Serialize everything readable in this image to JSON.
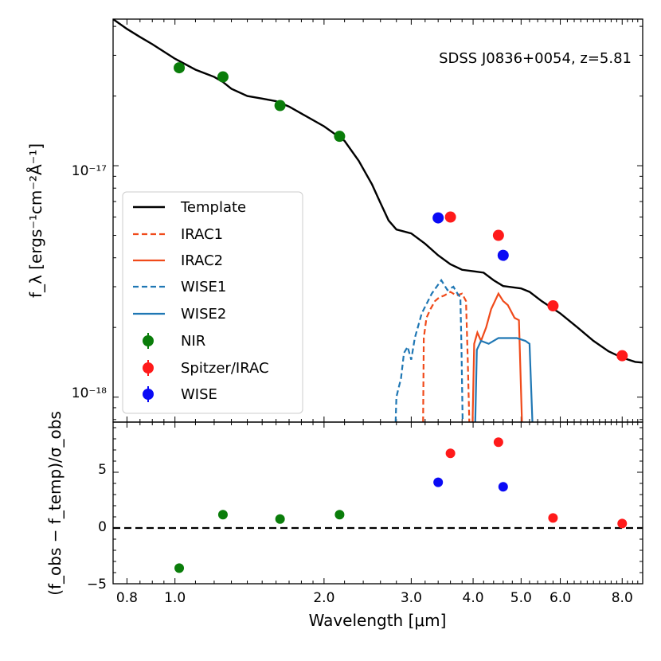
{
  "chart_data": {
    "type": "scatter",
    "annotation": "SDSS J0836+0054, z=5.81",
    "xlabel": "Wavelength [μm]",
    "xscale": "log",
    "xlim": [
      0.75,
      8.8
    ],
    "x_ticks": [
      {
        "value": 0.8,
        "label": "0.8"
      },
      {
        "value": 1.0,
        "label": "1.0"
      },
      {
        "value": 2.0,
        "label": "2.0"
      },
      {
        "value": 3.0,
        "label": "3.0"
      },
      {
        "value": 4.0,
        "label": "4.0"
      },
      {
        "value": 5.0,
        "label": "5.0"
      },
      {
        "value": 6.0,
        "label": "6.0"
      },
      {
        "value": 8.0,
        "label": "8.0"
      }
    ],
    "top_panel": {
      "ylabel": "f_λ [ergs⁻¹cm⁻²Å⁻¹]",
      "yscale": "log",
      "ylim": [
        7.8e-19,
        4.3e-17
      ],
      "y_ticks": [
        {
          "value": 1e-17,
          "label": "10⁻¹⁷"
        },
        {
          "value": 1e-18,
          "label": "10⁻¹⁸"
        }
      ],
      "template": {
        "name": "Template",
        "color": "#000000",
        "points": [
          [
            0.75,
            4.3e-17
          ],
          [
            0.8,
            3.9e-17
          ],
          [
            0.85,
            3.6e-17
          ],
          [
            0.9,
            3.35e-17
          ],
          [
            1.0,
            2.9e-17
          ],
          [
            1.1,
            2.6e-17
          ],
          [
            1.2,
            2.42e-17
          ],
          [
            1.25,
            2.3e-17
          ],
          [
            1.3,
            2.15e-17
          ],
          [
            1.4,
            2e-17
          ],
          [
            1.5,
            1.95e-17
          ],
          [
            1.6,
            1.9e-17
          ],
          [
            1.7,
            1.8e-17
          ],
          [
            1.8,
            1.68e-17
          ],
          [
            2.0,
            1.48e-17
          ],
          [
            2.2,
            1.28e-17
          ],
          [
            2.35,
            1.05e-17
          ],
          [
            2.5,
            8.3e-18
          ],
          [
            2.6,
            6.9e-18
          ],
          [
            2.7,
            5.8e-18
          ],
          [
            2.8,
            5.3e-18
          ],
          [
            3.0,
            5.1e-18
          ],
          [
            3.2,
            4.6e-18
          ],
          [
            3.4,
            4.1e-18
          ],
          [
            3.6,
            3.75e-18
          ],
          [
            3.8,
            3.55e-18
          ],
          [
            4.0,
            3.5e-18
          ],
          [
            4.2,
            3.45e-18
          ],
          [
            4.4,
            3.2e-18
          ],
          [
            4.6,
            3.02e-18
          ],
          [
            5.0,
            2.95e-18
          ],
          [
            5.2,
            2.85e-18
          ],
          [
            5.5,
            2.6e-18
          ],
          [
            6.0,
            2.3e-18
          ],
          [
            6.5,
            2e-18
          ],
          [
            7.0,
            1.75e-18
          ],
          [
            7.5,
            1.58e-18
          ],
          [
            8.0,
            1.48e-18
          ],
          [
            8.5,
            1.42e-18
          ],
          [
            8.8,
            1.41e-18
          ]
        ]
      },
      "filters": [
        {
          "name": "IRAC1",
          "color": "#f04a1a",
          "dash": true,
          "points": [
            [
              3.17,
              7.8e-19
            ],
            [
              3.18,
              1.8e-18
            ],
            [
              3.22,
              2.2e-18
            ],
            [
              3.28,
              2.4e-18
            ],
            [
              3.35,
              2.6e-18
            ],
            [
              3.42,
              2.7e-18
            ],
            [
              3.5,
              2.75e-18
            ],
            [
              3.6,
              2.85e-18
            ],
            [
              3.7,
              2.75e-18
            ],
            [
              3.8,
              2.8e-18
            ],
            [
              3.87,
              2.6e-18
            ],
            [
              3.9,
              1.5e-18
            ],
            [
              3.93,
              7.8e-19
            ]
          ]
        },
        {
          "name": "IRAC2",
          "color": "#f04a1a",
          "dash": false,
          "points": [
            [
              3.99,
              7.8e-19
            ],
            [
              4.02,
              1.7e-18
            ],
            [
              4.08,
              1.9e-18
            ],
            [
              4.15,
              1.75e-18
            ],
            [
              4.25,
              2e-18
            ],
            [
              4.35,
              2.4e-18
            ],
            [
              4.5,
              2.8e-18
            ],
            [
              4.6,
              2.6e-18
            ],
            [
              4.7,
              2.5e-18
            ],
            [
              4.85,
              2.2e-18
            ],
            [
              4.95,
              2.15e-18
            ],
            [
              5.02,
              7.8e-19
            ]
          ]
        },
        {
          "name": "WISE1",
          "color": "#1f77b4",
          "dash": true,
          "points": [
            [
              2.79,
              7.8e-19
            ],
            [
              2.8,
              1e-18
            ],
            [
              2.83,
              1.1e-18
            ],
            [
              2.86,
              1.2e-18
            ],
            [
              2.9,
              1.55e-18
            ],
            [
              2.95,
              1.65e-18
            ],
            [
              3.0,
              1.45e-18
            ],
            [
              3.05,
              1.8e-18
            ],
            [
              3.15,
              2.3e-18
            ],
            [
              3.3,
              2.8e-18
            ],
            [
              3.45,
              3.2e-18
            ],
            [
              3.55,
              2.9e-18
            ],
            [
              3.65,
              3e-18
            ],
            [
              3.72,
              2.8e-18
            ],
            [
              3.77,
              2.7e-18
            ],
            [
              3.79,
              1.6e-18
            ],
            [
              3.81,
              7.8e-19
            ]
          ]
        },
        {
          "name": "WISE2",
          "color": "#1f77b4",
          "dash": false,
          "points": [
            [
              4.04,
              7.8e-19
            ],
            [
              4.07,
              1.6e-18
            ],
            [
              4.15,
              1.75e-18
            ],
            [
              4.3,
              1.7e-18
            ],
            [
              4.5,
              1.8e-18
            ],
            [
              4.7,
              1.8e-18
            ],
            [
              4.9,
              1.8e-18
            ],
            [
              5.1,
              1.75e-18
            ],
            [
              5.2,
              1.7e-18
            ],
            [
              5.27,
              7.8e-19
            ]
          ]
        }
      ],
      "series": [
        {
          "name": "NIR",
          "color": "#0a7d0a",
          "x": [
            1.02,
            1.25,
            1.63,
            2.15
          ],
          "y": [
            2.65e-17,
            2.42e-17,
            1.82e-17,
            1.34e-17
          ]
        },
        {
          "name": "Spitzer/IRAC",
          "color": "#ff1a1a",
          "x": [
            3.6,
            4.5,
            5.8,
            8.0
          ],
          "y": [
            6e-18,
            5e-18,
            2.48e-18,
            1.51e-18
          ]
        },
        {
          "name": "WISE",
          "color": "#0a0af5",
          "x": [
            3.4,
            4.6
          ],
          "y": [
            5.95e-18,
            4.1e-18
          ]
        }
      ],
      "legend": [
        "Template",
        "IRAC1",
        "IRAC2",
        "WISE1",
        "WISE2",
        "NIR",
        "Spitzer/IRAC",
        "WISE"
      ]
    },
    "bottom_panel": {
      "ylabel": "(f_obs − f_temp)/σ_obs",
      "ylim": [
        -5,
        9.5
      ],
      "y_ticks": [
        {
          "value": -5,
          "label": "−5"
        },
        {
          "value": 0,
          "label": "0"
        },
        {
          "value": 5,
          "label": "5"
        }
      ],
      "zero_line": 0,
      "series": [
        {
          "name": "NIR",
          "color": "#0a7d0a",
          "x": [
            1.02,
            1.25,
            1.63,
            2.15
          ],
          "y": [
            -3.6,
            1.2,
            0.8,
            1.2
          ]
        },
        {
          "name": "Spitzer/IRAC",
          "color": "#ff1a1a",
          "x": [
            3.6,
            4.5,
            5.8,
            8.0
          ],
          "y": [
            6.7,
            7.7,
            0.9,
            0.4
          ]
        },
        {
          "name": "WISE",
          "color": "#0a0af5",
          "x": [
            3.4,
            4.6
          ],
          "y": [
            4.1,
            3.7
          ]
        }
      ]
    }
  }
}
